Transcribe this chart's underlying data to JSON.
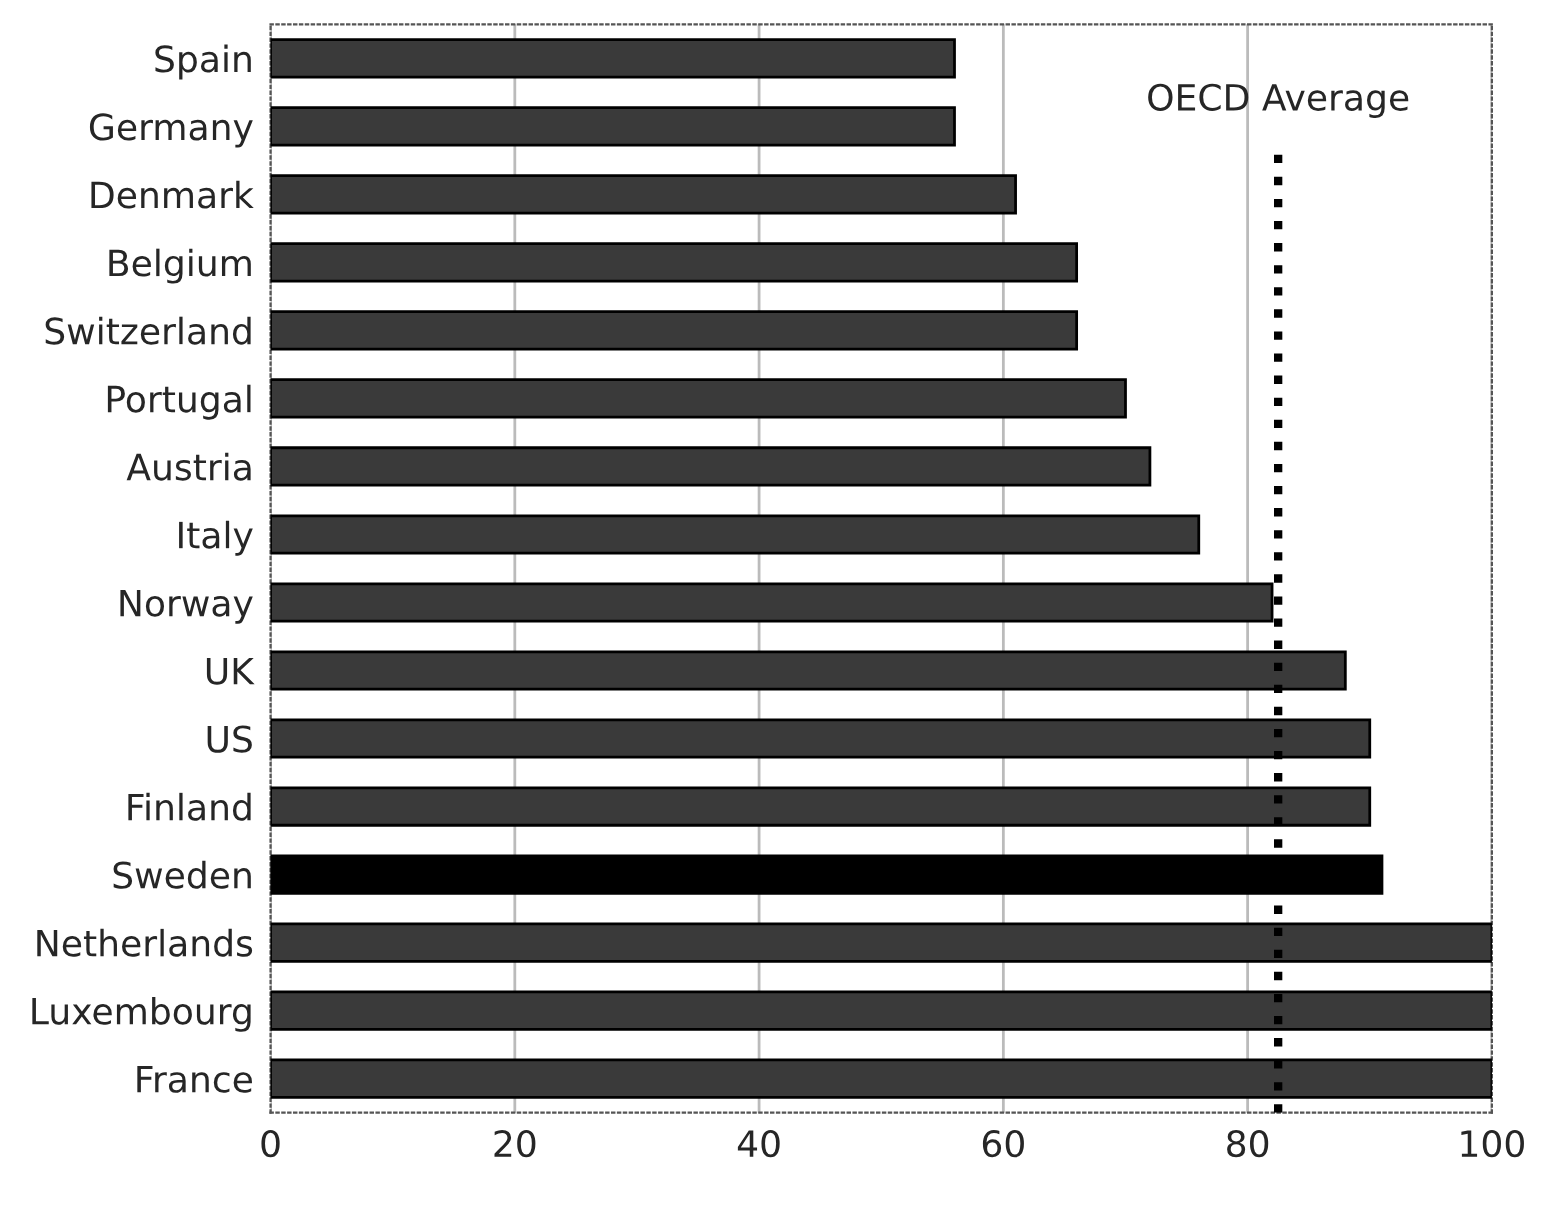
{
  "chart_data": {
    "type": "bar",
    "orientation": "horizontal",
    "categories": [
      "Spain",
      "Germany",
      "Denmark",
      "Belgium",
      "Switzerland",
      "Portugal",
      "Austria",
      "Italy",
      "Norway",
      "UK",
      "US",
      "Finland",
      "Sweden",
      "Netherlands",
      "Luxembourg",
      "France"
    ],
    "values": [
      56,
      56,
      61,
      66,
      66,
      70,
      72,
      76,
      82,
      88,
      90,
      90,
      91,
      100,
      100,
      100
    ],
    "colors": [
      "#3a3a3a",
      "#3a3a3a",
      "#3a3a3a",
      "#3a3a3a",
      "#3a3a3a",
      "#3a3a3a",
      "#3a3a3a",
      "#3a3a3a",
      "#3a3a3a",
      "#3a3a3a",
      "#3a3a3a",
      "#3a3a3a",
      "#000000",
      "#3a3a3a",
      "#3a3a3a",
      "#3a3a3a"
    ],
    "xlim": [
      0,
      100
    ],
    "xticks": [
      0,
      20,
      40,
      60,
      80,
      100
    ],
    "grid": "x",
    "ref_lines": [
      {
        "axis": "x",
        "value": 82.5,
        "label": "OECD Average",
        "color": "#000000",
        "line_style": "dotted"
      }
    ]
  }
}
